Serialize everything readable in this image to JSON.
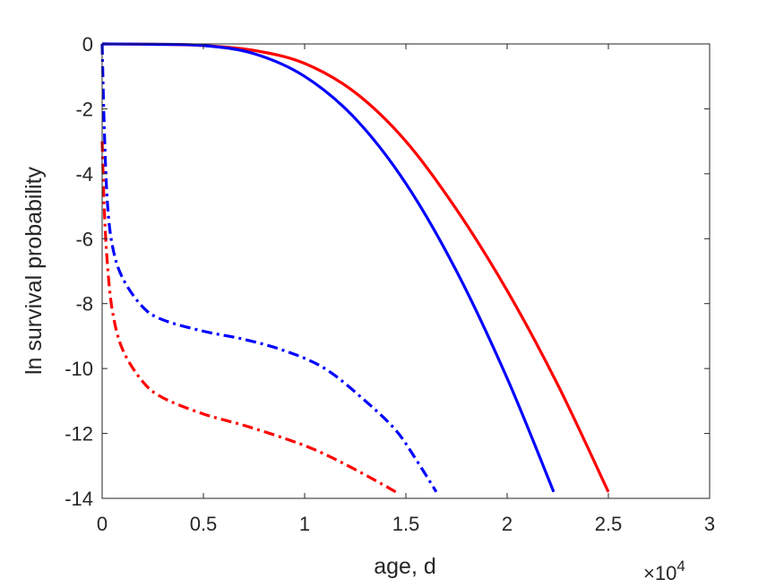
{
  "chart_data": {
    "type": "line",
    "xlabel": "age, d",
    "ylabel": "ln survival probability",
    "x_exponent_label": "×10",
    "x_exponent_power": "4",
    "xlim": [
      0,
      30000
    ],
    "ylim": [
      -14,
      0
    ],
    "xticks": [
      0,
      5000,
      10000,
      15000,
      20000,
      25000,
      30000
    ],
    "xtick_labels": [
      "0",
      "0.5",
      "1",
      "1.5",
      "2",
      "2.5",
      "3"
    ],
    "yticks": [
      0,
      -2,
      -4,
      -6,
      -8,
      -10,
      -12,
      -14
    ],
    "ytick_labels": [
      "0",
      "-2",
      "-4",
      "-6",
      "-8",
      "-10",
      "-12",
      "-14"
    ],
    "grid": false,
    "series": [
      {
        "color": "#ff0000",
        "style": "solid",
        "x": [
          0,
          2500,
          5000,
          7500,
          10000,
          12500,
          15000,
          17500,
          20000,
          22500,
          25000
        ],
        "y": [
          0,
          -0.01,
          -0.05,
          -0.2,
          -0.6,
          -1.5,
          -3.0,
          -5.1,
          -7.6,
          -10.5,
          -13.8
        ]
      },
      {
        "color": "#0000ff",
        "style": "solid",
        "x": [
          0,
          2500,
          5000,
          7500,
          10000,
          12500,
          15000,
          17500,
          20000,
          22300
        ],
        "y": [
          0,
          -0.01,
          -0.05,
          -0.3,
          -1.0,
          -2.3,
          -4.3,
          -7.0,
          -10.3,
          -13.8
        ]
      },
      {
        "color": "#0000ff",
        "style": "dashdot",
        "x": [
          0,
          100,
          250,
          500,
          1000,
          2000,
          3000,
          5000,
          7000,
          9000,
          11000,
          13000,
          14500,
          15500,
          16500
        ],
        "y": [
          0,
          -2.5,
          -4.8,
          -6.2,
          -7.2,
          -8.1,
          -8.5,
          -8.85,
          -9.1,
          -9.45,
          -10.0,
          -11.0,
          -11.9,
          -12.8,
          -13.8
        ]
      },
      {
        "color": "#ff0000",
        "style": "dashdot",
        "x": [
          0,
          100,
          250,
          500,
          1000,
          2000,
          3000,
          5000,
          7000,
          9000,
          10500,
          12000,
          13500,
          14500
        ],
        "y": [
          -3.0,
          -5.0,
          -6.7,
          -8.2,
          -9.4,
          -10.4,
          -10.9,
          -11.4,
          -11.75,
          -12.15,
          -12.5,
          -12.95,
          -13.45,
          -13.8
        ]
      }
    ]
  }
}
